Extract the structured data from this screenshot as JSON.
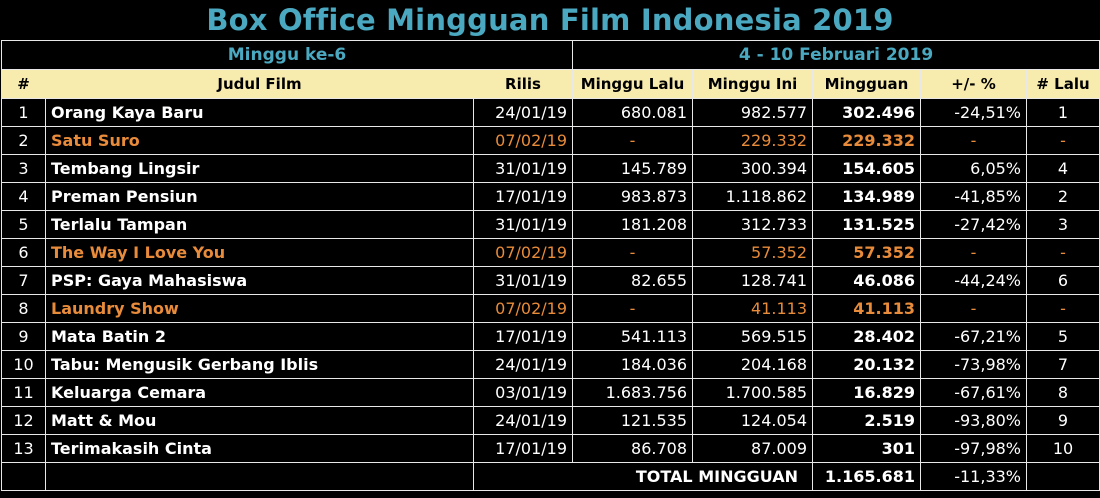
{
  "title": "Box Office Mingguan Film Indonesia 2019",
  "week_label": "Minggu ke-6",
  "date_range": "4 - 10 Februari 2019",
  "colors": {
    "accent": "#4aa8c0",
    "header_bg": "#f7ecad",
    "new_release": "#e88b3a",
    "background": "#000000"
  },
  "columns": {
    "no": "#",
    "title": "Judul Film",
    "release": "Rilis",
    "last_week": "Minggu Lalu",
    "this_week": "Minggu Ini",
    "weekly": "Mingguan",
    "change": "+/- %",
    "last_rank": "# Lalu"
  },
  "rows": [
    {
      "no": "1",
      "title": "Orang Kaya Baru",
      "release": "24/01/19",
      "last_week": "680.081",
      "this_week": "982.577",
      "weekly": "302.496",
      "change": "-24,51%",
      "last_rank": "1",
      "is_new": false
    },
    {
      "no": "2",
      "title": "Satu Suro",
      "release": "07/02/19",
      "last_week": "-",
      "this_week": "229.332",
      "weekly": "229.332",
      "change": "-",
      "last_rank": "-",
      "is_new": true
    },
    {
      "no": "3",
      "title": "Tembang Lingsir",
      "release": "31/01/19",
      "last_week": "145.789",
      "this_week": "300.394",
      "weekly": "154.605",
      "change": "6,05%",
      "last_rank": "4",
      "is_new": false
    },
    {
      "no": "4",
      "title": "Preman Pensiun",
      "release": "17/01/19",
      "last_week": "983.873",
      "this_week": "1.118.862",
      "weekly": "134.989",
      "change": "-41,85%",
      "last_rank": "2",
      "is_new": false
    },
    {
      "no": "5",
      "title": "Terlalu Tampan",
      "release": "31/01/19",
      "last_week": "181.208",
      "this_week": "312.733",
      "weekly": "131.525",
      "change": "-27,42%",
      "last_rank": "3",
      "is_new": false
    },
    {
      "no": "6",
      "title": "The Way I Love You",
      "release": "07/02/19",
      "last_week": "-",
      "this_week": "57.352",
      "weekly": "57.352",
      "change": "-",
      "last_rank": "-",
      "is_new": true
    },
    {
      "no": "7",
      "title": "PSP: Gaya Mahasiswa",
      "release": "31/01/19",
      "last_week": "82.655",
      "this_week": "128.741",
      "weekly": "46.086",
      "change": "-44,24%",
      "last_rank": "6",
      "is_new": false
    },
    {
      "no": "8",
      "title": "Laundry Show",
      "release": "07/02/19",
      "last_week": "-",
      "this_week": "41.113",
      "weekly": "41.113",
      "change": "-",
      "last_rank": "-",
      "is_new": true
    },
    {
      "no": "9",
      "title": "Mata Batin 2",
      "release": "17/01/19",
      "last_week": "541.113",
      "this_week": "569.515",
      "weekly": "28.402",
      "change": "-67,21%",
      "last_rank": "5",
      "is_new": false
    },
    {
      "no": "10",
      "title": "Tabu: Mengusik Gerbang Iblis",
      "release": "24/01/19",
      "last_week": "184.036",
      "this_week": "204.168",
      "weekly": "20.132",
      "change": "-73,98%",
      "last_rank": "7",
      "is_new": false
    },
    {
      "no": "11",
      "title": "Keluarga Cemara",
      "release": "03/01/19",
      "last_week": "1.683.756",
      "this_week": "1.700.585",
      "weekly": "16.829",
      "change": "-67,61%",
      "last_rank": "8",
      "is_new": false
    },
    {
      "no": "12",
      "title": "Matt & Mou",
      "release": "24/01/19",
      "last_week": "121.535",
      "this_week": "124.054",
      "weekly": "2.519",
      "change": "-93,80%",
      "last_rank": "9",
      "is_new": false
    },
    {
      "no": "13",
      "title": "Terimakasih Cinta",
      "release": "17/01/19",
      "last_week": "86.708",
      "this_week": "87.009",
      "weekly": "301",
      "change": "-97,98%",
      "last_rank": "10",
      "is_new": false
    }
  ],
  "total": {
    "label": "TOTAL MINGGUAN",
    "weekly": "1.165.681",
    "change": "-11,33%"
  }
}
